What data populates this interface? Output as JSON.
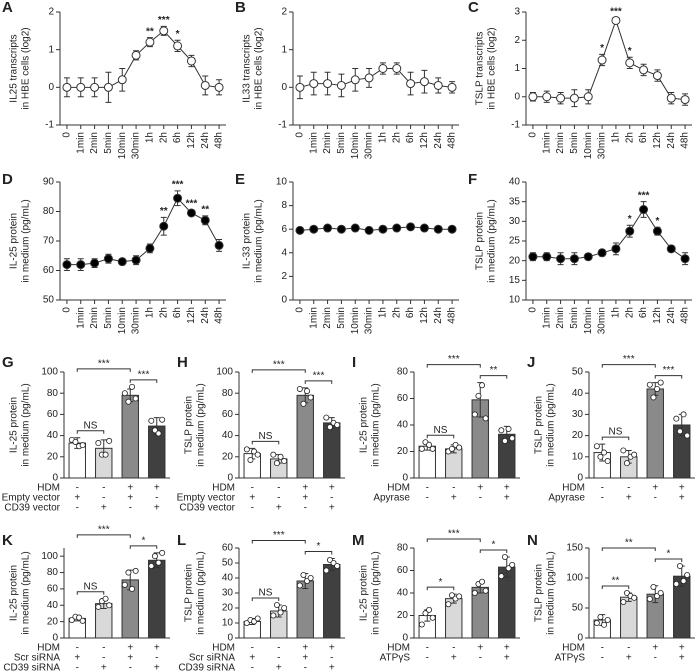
{
  "chart_data": [
    {
      "type": "line",
      "panel": "A",
      "ylabel": [
        "IL25 transcripts",
        "in HBE cells (log2)"
      ],
      "categories": [
        "0",
        "1min",
        "2min",
        "5min",
        "10min",
        "30min",
        "1h",
        "2h",
        "6h",
        "12h",
        "24h",
        "48h"
      ],
      "values": [
        0,
        0,
        0,
        0,
        0.2,
        0.85,
        1.2,
        1.5,
        1.1,
        0.7,
        0.05,
        0
      ],
      "errors": [
        0.25,
        0.25,
        0.25,
        0.4,
        0.3,
        0.12,
        0.12,
        0.12,
        0.15,
        0.15,
        0.25,
        0.2
      ],
      "annotations": [
        null,
        null,
        null,
        null,
        null,
        null,
        "**",
        "***",
        "*",
        null,
        null,
        null
      ],
      "marker_fill": "#ffffff",
      "ylim": [
        -1,
        2
      ],
      "yticks": [
        -1,
        0,
        1,
        2
      ]
    },
    {
      "type": "line",
      "panel": "B",
      "ylabel": [
        "IL33 transcripts",
        "in HBE cells (log2)"
      ],
      "categories": [
        "0",
        "1min",
        "2min",
        "5min",
        "10min",
        "30min",
        "1h",
        "2h",
        "6h",
        "12h",
        "24h",
        "48h"
      ],
      "values": [
        0,
        0.1,
        0.1,
        0.05,
        0.2,
        0.25,
        0.5,
        0.5,
        0.1,
        0.15,
        0.05,
        0
      ],
      "errors": [
        0.3,
        0.3,
        0.3,
        0.3,
        0.3,
        0.25,
        0.15,
        0.15,
        0.3,
        0.3,
        0.2,
        0.15
      ],
      "annotations": [
        null,
        null,
        null,
        null,
        null,
        null,
        null,
        null,
        null,
        null,
        null,
        null
      ],
      "marker_fill": "#ffffff",
      "ylim": [
        -1,
        2
      ],
      "yticks": [
        -1,
        0,
        1,
        2
      ]
    },
    {
      "type": "line",
      "panel": "C",
      "ylabel": [
        "TSLP transcripts",
        "in HBE cells (log2)"
      ],
      "categories": [
        "0",
        "1min",
        "2min",
        "5min",
        "10min",
        "30min",
        "1h",
        "2h",
        "6h",
        "12h",
        "24h",
        "48h"
      ],
      "values": [
        0,
        0,
        -0.05,
        -0.05,
        0,
        1.3,
        2.7,
        1.2,
        0.95,
        0.75,
        -0.05,
        -0.1
      ],
      "errors": [
        0.15,
        0.2,
        0.2,
        0.3,
        0.25,
        0.2,
        0.1,
        0.2,
        0.2,
        0.2,
        0.2,
        0.2
      ],
      "annotations": [
        null,
        null,
        null,
        null,
        null,
        "*",
        "***",
        "*",
        null,
        null,
        null,
        null
      ],
      "marker_fill": "#ffffff",
      "ylim": [
        -1,
        3
      ],
      "yticks": [
        -1,
        0,
        1,
        2,
        3
      ]
    },
    {
      "type": "line",
      "panel": "D",
      "ylabel": [
        "IL-25 protein",
        "in medium (pg/mL)"
      ],
      "categories": [
        "0",
        "1min",
        "2min",
        "5min",
        "10min",
        "30min",
        "1h",
        "2h",
        "6h",
        "12h",
        "24h",
        "48h"
      ],
      "values": [
        62,
        62,
        62.5,
        64,
        63,
        63.5,
        67.5,
        75,
        84.5,
        79.5,
        77,
        68.5
      ],
      "errors": [
        2,
        2,
        1.5,
        1.5,
        1,
        1.5,
        1.5,
        3,
        2.5,
        1,
        1.5,
        2
      ],
      "annotations": [
        null,
        null,
        null,
        null,
        null,
        null,
        null,
        "**",
        "***",
        "***",
        "**",
        null
      ],
      "marker_fill": "#000000",
      "ylim": [
        50,
        90
      ],
      "yticks": [
        50,
        60,
        70,
        80,
        90
      ]
    },
    {
      "type": "line",
      "panel": "E",
      "ylabel": [
        "IL-33 protein",
        "in medium (pg/mL)"
      ],
      "categories": [
        "0",
        "1min",
        "2min",
        "5min",
        "10min",
        "30min",
        "1h",
        "2h",
        "6h",
        "12h",
        "24h",
        "48h"
      ],
      "values": [
        5.9,
        6.0,
        6.1,
        6.0,
        6.1,
        5.9,
        6.0,
        6.1,
        6.2,
        6.1,
        6.0,
        6.0
      ],
      "errors": [
        0.15,
        0.15,
        0.15,
        0.15,
        0.15,
        0.15,
        0.15,
        0.15,
        0.15,
        0.15,
        0.15,
        0.15
      ],
      "annotations": [
        null,
        null,
        null,
        null,
        null,
        null,
        null,
        null,
        null,
        null,
        null,
        null
      ],
      "marker_fill": "#000000",
      "ylim": [
        0,
        10
      ],
      "yticks": [
        0,
        2,
        4,
        6,
        8,
        10
      ]
    },
    {
      "type": "line",
      "panel": "F",
      "ylabel": [
        "TSLP protein",
        "in medium (pg/mL)"
      ],
      "categories": [
        "0",
        "1min",
        "2min",
        "5min",
        "10min",
        "30min",
        "1h",
        "2h",
        "6h",
        "12h",
        "24h",
        "48h"
      ],
      "values": [
        21,
        21,
        20.5,
        20.5,
        21,
        22,
        23,
        27.5,
        33,
        27.5,
        23,
        20.5
      ],
      "errors": [
        1,
        1,
        1.5,
        1.5,
        0.8,
        0.8,
        1.5,
        1.5,
        2,
        1,
        0.8,
        1.5
      ],
      "annotations": [
        null,
        null,
        null,
        null,
        null,
        null,
        null,
        "*",
        "***",
        "*",
        null,
        null
      ],
      "marker_fill": "#000000",
      "ylim": [
        10,
        40
      ],
      "yticks": [
        10,
        15,
        20,
        25,
        30,
        35,
        40
      ]
    },
    {
      "type": "bar",
      "panel": "G",
      "ylabel": [
        "IL-25 protein",
        "in medium (pg/mL)"
      ],
      "values": [
        33,
        28,
        78,
        49
      ],
      "errors": [
        5,
        8,
        6,
        8
      ],
      "points": [
        [
          36,
          34,
          30,
          31
        ],
        [
          33,
          22,
          22,
          35
        ],
        [
          80,
          72,
          86,
          75
        ],
        [
          54,
          45,
          42,
          55
        ]
      ],
      "colors": [
        "#ffffff",
        "#d9d9d9",
        "#8a8a8a",
        "#404040"
      ],
      "conditions": [
        {
          "label": "HDM",
          "values": [
            "-",
            "-",
            "+",
            "+"
          ]
        },
        {
          "label": "Empty vector",
          "values": [
            "+",
            "-",
            "+",
            "-"
          ]
        },
        {
          "label": "CD39 vector",
          "values": [
            "-",
            "+",
            "-",
            "+"
          ]
        }
      ],
      "brackets": [
        {
          "between": [
            0,
            1
          ],
          "label": "NS"
        },
        {
          "between": [
            0,
            2
          ],
          "label": "***"
        },
        {
          "between": [
            2,
            3
          ],
          "label": "***"
        }
      ],
      "ylim": [
        0,
        100
      ],
      "yticks": [
        0,
        20,
        40,
        60,
        80,
        100
      ]
    },
    {
      "type": "bar",
      "panel": "H",
      "ylabel": [
        "TSLP protein",
        "in medium (pg/mL)"
      ],
      "values": [
        23,
        18,
        78,
        52
      ],
      "errors": [
        5,
        4,
        7,
        5
      ],
      "points": [
        [
          27,
          17,
          25,
          22
        ],
        [
          22,
          14,
          20,
          16
        ],
        [
          84,
          70,
          82,
          76
        ],
        [
          57,
          48,
          52,
          50
        ]
      ],
      "colors": [
        "#ffffff",
        "#d9d9d9",
        "#8a8a8a",
        "#404040"
      ],
      "conditions": [
        {
          "label": "HDM",
          "values": [
            "-",
            "-",
            "+",
            "+"
          ]
        },
        {
          "label": "Empty vector",
          "values": [
            "+",
            "-",
            "+",
            "-"
          ]
        },
        {
          "label": "CD39 vector",
          "values": [
            "-",
            "+",
            "-",
            "+"
          ]
        }
      ],
      "brackets": [
        {
          "between": [
            0,
            1
          ],
          "label": "NS"
        },
        {
          "between": [
            0,
            2
          ],
          "label": "***"
        },
        {
          "between": [
            2,
            3
          ],
          "label": "***"
        }
      ],
      "ylim": [
        0,
        100
      ],
      "yticks": [
        0,
        20,
        40,
        60,
        80,
        100
      ]
    },
    {
      "type": "bar",
      "panel": "I",
      "ylabel": [
        "IL-25 protein",
        "in medium (pg/mL)"
      ],
      "values": [
        24,
        22,
        59,
        33
      ],
      "errors": [
        3,
        3,
        13,
        6
      ],
      "points": [
        [
          22,
          27,
          25,
          22
        ],
        [
          20,
          22,
          25,
          23
        ],
        [
          48,
          62,
          70,
          45
        ],
        [
          36,
          28,
          37,
          30
        ]
      ],
      "colors": [
        "#ffffff",
        "#d9d9d9",
        "#8a8a8a",
        "#404040"
      ],
      "conditions": [
        {
          "label": "HDM",
          "values": [
            "-",
            "-",
            "+",
            "+"
          ]
        },
        {
          "label": "Apyrase",
          "values": [
            "-",
            "+",
            "-",
            "+"
          ]
        }
      ],
      "brackets": [
        {
          "between": [
            0,
            1
          ],
          "label": "NS"
        },
        {
          "between": [
            0,
            2
          ],
          "label": "***"
        },
        {
          "between": [
            2,
            3
          ],
          "label": "**"
        }
      ],
      "ylim": [
        0,
        80
      ],
      "yticks": [
        0,
        20,
        40,
        60,
        80
      ]
    },
    {
      "type": "bar",
      "panel": "J",
      "ylabel": [
        "TSLP protein",
        "in medium (pg/mL)"
      ],
      "values": [
        12,
        10,
        42,
        25
      ],
      "errors": [
        4,
        3,
        3,
        5
      ],
      "points": [
        [
          15,
          10,
          12,
          8
        ],
        [
          13,
          7,
          10,
          11
        ],
        [
          44,
          38,
          42,
          45
        ],
        [
          28,
          22,
          30,
          20
        ]
      ],
      "colors": [
        "#ffffff",
        "#d9d9d9",
        "#8a8a8a",
        "#404040"
      ],
      "conditions": [
        {
          "label": "HDM",
          "values": [
            "-",
            "-",
            "+",
            "+"
          ]
        },
        {
          "label": "Apyrase",
          "values": [
            "-",
            "+",
            "-",
            "+"
          ]
        }
      ],
      "brackets": [
        {
          "between": [
            0,
            1
          ],
          "label": "NS"
        },
        {
          "between": [
            0,
            2
          ],
          "label": "***"
        },
        {
          "between": [
            2,
            3
          ],
          "label": "***"
        }
      ],
      "ylim": [
        0,
        50
      ],
      "yticks": [
        0,
        10,
        20,
        30,
        40,
        50
      ]
    },
    {
      "type": "bar",
      "panel": "K",
      "ylabel": [
        "IL-25 protein",
        "in medium (pg/mL)"
      ],
      "values": [
        24,
        42,
        71,
        95
      ],
      "errors": [
        3,
        6,
        12,
        9
      ],
      "points": [
        [
          22,
          26,
          25,
          21
        ],
        [
          38,
          45,
          48,
          40
        ],
        [
          65,
          80,
          60,
          82
        ],
        [
          88,
          100,
          92,
          104
        ]
      ],
      "colors": [
        "#ffffff",
        "#d9d9d9",
        "#8a8a8a",
        "#404040"
      ],
      "conditions": [
        {
          "label": "HDM",
          "values": [
            "-",
            "-",
            "+",
            "+"
          ]
        },
        {
          "label": "Scr siRNA",
          "values": [
            "+",
            "-",
            "+",
            "-"
          ]
        },
        {
          "label": "CD39 siRNA",
          "values": [
            "-",
            "+",
            "-",
            "+"
          ]
        }
      ],
      "brackets": [
        {
          "between": [
            0,
            1
          ],
          "label": "NS"
        },
        {
          "between": [
            0,
            2
          ],
          "label": "***"
        },
        {
          "between": [
            2,
            3
          ],
          "label": "*"
        }
      ],
      "ylim": [
        0,
        110
      ],
      "yticks": [
        0,
        20,
        40,
        60,
        80,
        100
      ]
    },
    {
      "type": "bar",
      "panel": "L",
      "ylabel": [
        "TSLP protein",
        "in medium (pg/mL)"
      ],
      "values": [
        11,
        18,
        38,
        49
      ],
      "errors": [
        2,
        4,
        5,
        4
      ],
      "points": [
        [
          10,
          12,
          11,
          13
        ],
        [
          15,
          22,
          17,
          20
        ],
        [
          35,
          42,
          38,
          40
        ],
        [
          45,
          52,
          50,
          48
        ]
      ],
      "colors": [
        "#ffffff",
        "#d9d9d9",
        "#8a8a8a",
        "#404040"
      ],
      "conditions": [
        {
          "label": "HDM",
          "values": [
            "-",
            "-",
            "+",
            "+"
          ]
        },
        {
          "label": "Scr siRNA",
          "values": [
            "+",
            "-",
            "+",
            "-"
          ]
        },
        {
          "label": "CD39 siRNA",
          "values": [
            "-",
            "+",
            "-",
            "+"
          ]
        }
      ],
      "brackets": [
        {
          "between": [
            0,
            1
          ],
          "label": "NS"
        },
        {
          "between": [
            0,
            2
          ],
          "label": "***"
        },
        {
          "between": [
            2,
            3
          ],
          "label": "*"
        }
      ],
      "ylim": [
        0,
        60
      ],
      "yticks": [
        0,
        10,
        20,
        30,
        40,
        50,
        60
      ]
    },
    {
      "type": "bar",
      "panel": "M",
      "ylabel": [
        "IL-25 protein",
        "in medium (pg/mL)"
      ],
      "values": [
        20,
        35,
        45,
        63
      ],
      "errors": [
        5,
        4,
        5,
        9
      ],
      "points": [
        [
          12,
          22,
          25,
          18
        ],
        [
          30,
          38,
          35,
          37
        ],
        [
          40,
          48,
          50,
          42
        ],
        [
          55,
          72,
          62,
          65
        ]
      ],
      "colors": [
        "#ffffff",
        "#d9d9d9",
        "#8a8a8a",
        "#404040"
      ],
      "conditions": [
        {
          "label": "HDM",
          "values": [
            "-",
            "-",
            "+",
            "+"
          ]
        },
        {
          "label": "ATPγS",
          "values": [
            "-",
            "+",
            "-",
            "+"
          ]
        }
      ],
      "brackets": [
        {
          "between": [
            0,
            1
          ],
          "label": "*"
        },
        {
          "between": [
            0,
            2
          ],
          "label": "***"
        },
        {
          "between": [
            2,
            3
          ],
          "label": "*"
        }
      ],
      "ylim": [
        0,
        80
      ],
      "yticks": [
        0,
        20,
        40,
        60,
        80
      ]
    },
    {
      "type": "bar",
      "panel": "N",
      "ylabel": [
        "TSLP protein",
        "in medium (pg/mL)"
      ],
      "values": [
        30,
        68,
        73,
        103
      ],
      "errors": [
        9,
        7,
        14,
        17
      ],
      "points": [
        [
          25,
          35,
          22,
          30
        ],
        [
          60,
          75,
          70,
          67
        ],
        [
          65,
          85,
          70,
          75
        ],
        [
          90,
          120,
          95,
          105
        ]
      ],
      "colors": [
        "#ffffff",
        "#d9d9d9",
        "#8a8a8a",
        "#404040"
      ],
      "conditions": [
        {
          "label": "HDM",
          "values": [
            "-",
            "-",
            "+",
            "+"
          ]
        },
        {
          "label": "ATPγS",
          "values": [
            "-",
            "+",
            "-",
            "+"
          ]
        }
      ],
      "brackets": [
        {
          "between": [
            0,
            1
          ],
          "label": "**"
        },
        {
          "between": [
            0,
            2
          ],
          "label": "**"
        },
        {
          "between": [
            2,
            3
          ],
          "label": "*"
        }
      ],
      "ylim": [
        0,
        150
      ],
      "yticks": [
        0,
        50,
        100,
        150
      ]
    }
  ]
}
